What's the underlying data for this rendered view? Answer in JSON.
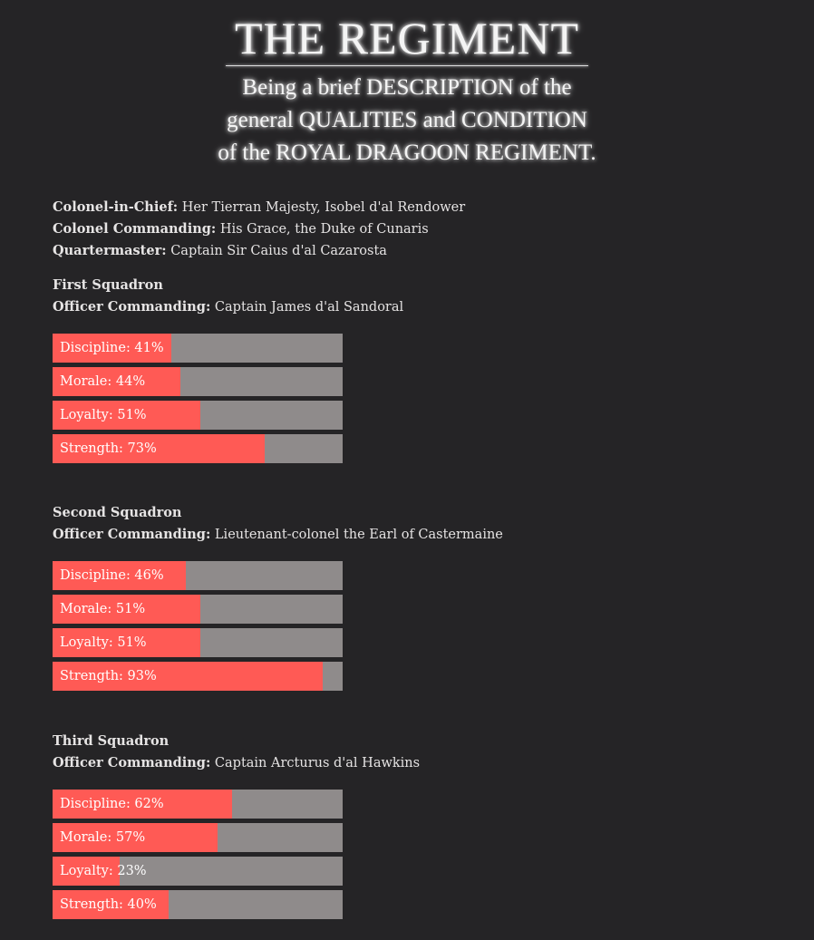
{
  "header": {
    "title": "THE REGIMENT",
    "subtitle_lines": [
      "Being a brief DESCRIPTION of the",
      "general QUALITIES and CONDITION",
      "of the ROYAL DRAGOON REGIMENT."
    ]
  },
  "info": [
    {
      "label": "Colonel-in-Chief:",
      "value": "Her Tierran Majesty, Isobel d'al Rendower"
    },
    {
      "label": "Colonel Commanding:",
      "value": "His Grace, the Duke of Cunaris"
    },
    {
      "label": "Quartermaster:",
      "value": "Captain Sir Caius d'al Cazarosta"
    }
  ],
  "colors": {
    "fill": "#ff5a55",
    "track": "#8f8b8b",
    "background": "#252426"
  },
  "squadrons": [
    {
      "title": "First Squadron",
      "officer_label": "Officer Commanding:",
      "officer": "Captain James d'al Sandoral",
      "stats": [
        {
          "label": "Discipline: 41%",
          "value": 41
        },
        {
          "label": "Morale: 44%",
          "value": 44
        },
        {
          "label": "Loyalty: 51%",
          "value": 51
        },
        {
          "label": "Strength: 73%",
          "value": 73
        }
      ]
    },
    {
      "title": "Second Squadron",
      "officer_label": "Officer Commanding:",
      "officer": "Lieutenant-colonel the Earl of Castermaine",
      "stats": [
        {
          "label": "Discipline: 46%",
          "value": 46
        },
        {
          "label": "Morale: 51%",
          "value": 51
        },
        {
          "label": "Loyalty: 51%",
          "value": 51
        },
        {
          "label": "Strength: 93%",
          "value": 93
        }
      ]
    },
    {
      "title": "Third Squadron",
      "officer_label": "Officer Commanding:",
      "officer": "Captain Arcturus d'al Hawkins",
      "stats": [
        {
          "label": "Discipline: 62%",
          "value": 62
        },
        {
          "label": "Morale: 57%",
          "value": 57
        },
        {
          "label": "Loyalty: 23%",
          "value": 23
        },
        {
          "label": "Strength: 40%",
          "value": 40
        }
      ]
    }
  ]
}
